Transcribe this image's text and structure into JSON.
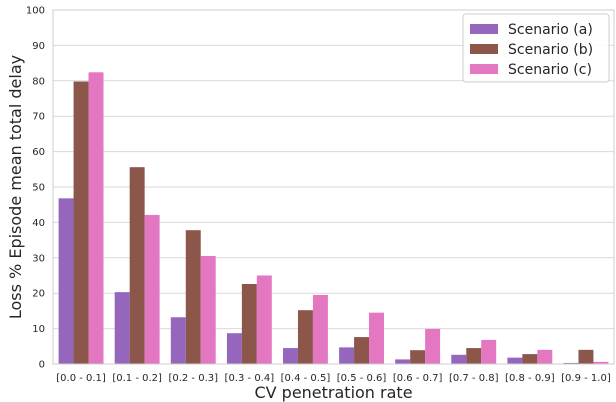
{
  "chart_data": {
    "type": "bar",
    "title": "",
    "xlabel": "CV penetration rate",
    "ylabel": "Loss %  Episode mean total delay",
    "ylim": [
      0,
      100
    ],
    "yticks": [
      0,
      10,
      20,
      30,
      40,
      50,
      60,
      70,
      80,
      90,
      100
    ],
    "grid": "horizontal",
    "legend_position": "top-right",
    "categories": [
      "[0.0 - 0.1]",
      "[0.1 - 0.2]",
      "[0.2 - 0.3]",
      "[0.3 - 0.4]",
      "[0.4 - 0.5]",
      "[0.5 - 0.6]",
      "[0.6 - 0.7]",
      "[0.7 - 0.8]",
      "[0.8 - 0.9]",
      "[0.9 - 1.0]"
    ],
    "series": [
      {
        "name": "Scenario (a)",
        "color": "#9467bd",
        "values": [
          46.8,
          20.3,
          13.2,
          8.7,
          4.5,
          4.7,
          1.3,
          2.6,
          1.8,
          0.3
        ]
      },
      {
        "name": "Scenario (b)",
        "color": "#8c564b",
        "values": [
          79.8,
          55.6,
          37.8,
          22.6,
          15.2,
          7.6,
          3.9,
          4.5,
          2.8,
          4.0
        ]
      },
      {
        "name": "Scenario (c)",
        "color": "#e377c2",
        "values": [
          82.4,
          42.1,
          30.5,
          25.0,
          19.5,
          14.5,
          9.9,
          6.8,
          4.0,
          0.6
        ]
      }
    ]
  }
}
